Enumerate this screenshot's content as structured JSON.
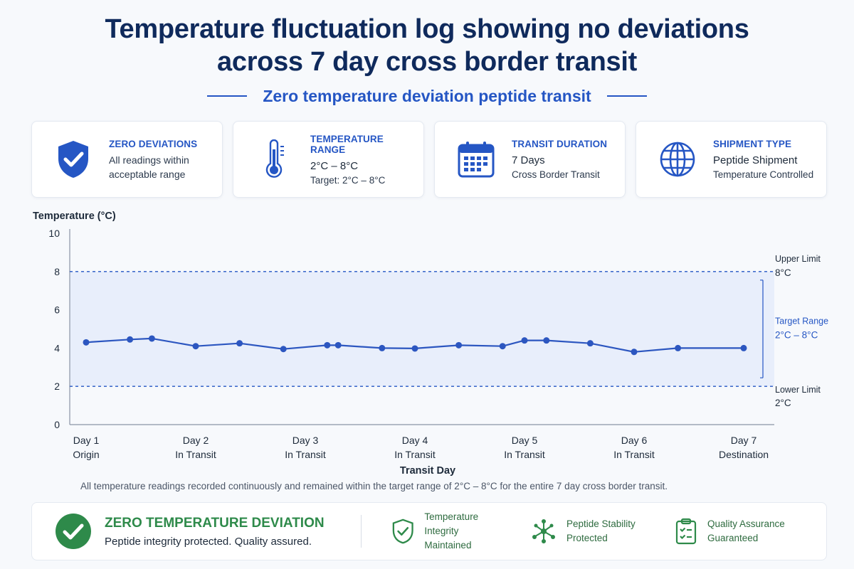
{
  "header": {
    "title_line1": "Temperature fluctuation log showing no deviations",
    "title_line2": "across 7 day cross border transit",
    "subtitle": "Zero temperature deviation peptide transit"
  },
  "cards": [
    {
      "icon": "shield-check-icon",
      "title": "ZERO DEVIATIONS",
      "line1": "All readings within",
      "line2": "acceptable range"
    },
    {
      "icon": "thermometer-icon",
      "title": "TEMPERATURE RANGE",
      "line1": "2°C – 8°C",
      "line2": "Target: 2°C – 8°C"
    },
    {
      "icon": "calendar-icon",
      "title": "TRANSIT DURATION",
      "line1": "7 Days",
      "line2": "Cross Border Transit"
    },
    {
      "icon": "globe-icon",
      "title": "SHIPMENT TYPE",
      "line1": "Peptide Shipment",
      "line2": "Temperature Controlled"
    }
  ],
  "chart_data": {
    "type": "line",
    "title": "",
    "ylabel": "Temperature (°C)",
    "xlabel": "Transit Day",
    "ylim": [
      0,
      10
    ],
    "xlim": [
      1,
      7
    ],
    "yticks": [
      0,
      2,
      4,
      6,
      8,
      10
    ],
    "categories": [
      {
        "day": "Day 1",
        "label": "Origin"
      },
      {
        "day": "Day 2",
        "label": "In Transit"
      },
      {
        "day": "Day 3",
        "label": "In Transit"
      },
      {
        "day": "Day 4",
        "label": "In Transit"
      },
      {
        "day": "Day 5",
        "label": "In Transit"
      },
      {
        "day": "Day 6",
        "label": "In Transit"
      },
      {
        "day": "Day 7",
        "label": "Destination"
      }
    ],
    "series": [
      {
        "color": "#2c56c0",
        "points": [
          [
            1.0,
            4.3
          ],
          [
            1.4,
            4.45
          ],
          [
            1.6,
            4.5
          ],
          [
            2.0,
            4.1
          ],
          [
            2.4,
            4.25
          ],
          [
            2.8,
            3.95
          ],
          [
            3.2,
            4.15
          ],
          [
            3.3,
            4.15
          ],
          [
            3.7,
            4.0
          ],
          [
            4.0,
            3.98
          ],
          [
            4.4,
            4.15
          ],
          [
            4.8,
            4.1
          ],
          [
            5.0,
            4.4
          ],
          [
            5.2,
            4.4
          ],
          [
            5.6,
            4.25
          ],
          [
            6.0,
            3.8
          ],
          [
            6.4,
            4.0
          ],
          [
            7.0,
            4.0
          ]
        ]
      }
    ],
    "thresholds": {
      "upper": {
        "value": 8,
        "label": "Upper Limit",
        "value_label": "8°C"
      },
      "lower": {
        "value": 2,
        "label": "Lower Limit",
        "value_label": "2°C"
      },
      "target": {
        "label": "Target Range",
        "value_label": "2°C – 8°C"
      }
    },
    "band_color": "#e8eefb",
    "grid": false,
    "legend": "none"
  },
  "footnote": "All temperature readings recorded continuously and remained within the target range of 2°C – 8°C for the entire 7 day cross border transit.",
  "summary": {
    "title": "ZERO TEMPERATURE DEVIATION",
    "subtitle": "Peptide integrity protected. Quality assured.",
    "features": [
      {
        "icon": "shield-check-icon",
        "line1": "Temperature Integrity",
        "line2": "Maintained"
      },
      {
        "icon": "molecule-icon",
        "line1": "Peptide Stability",
        "line2": "Protected"
      },
      {
        "icon": "clipboard-check-icon",
        "line1": "Quality Assurance",
        "line2": "Guaranteed"
      }
    ]
  }
}
